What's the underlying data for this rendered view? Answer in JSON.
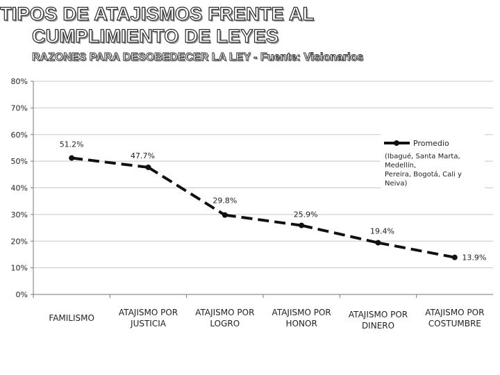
{
  "header": {
    "title_line1": "TIPOS DE ATAJISMOS FRENTE AL",
    "title_line2": "CUMPLIMIENTO DE LEYES",
    "subtitle": "RAZONES PARA DESOBEDECER LA LEY -  Fuente: Visionarios"
  },
  "chart_data": {
    "type": "line",
    "categories": [
      [
        "FAMILISMO"
      ],
      [
        "ATAJISMO POR",
        "JUSTICIA"
      ],
      [
        "ATAJISMO POR",
        "LOGRO"
      ],
      [
        "ATAJISMO POR",
        "HONOR"
      ],
      [
        "ATAJISMO POR",
        "DINERO"
      ],
      [
        "ATAJISMO POR",
        "COSTUMBRE"
      ]
    ],
    "series": [
      {
        "name": "Promedio",
        "values": [
          51.2,
          47.7,
          29.8,
          25.9,
          19.4,
          13.9
        ],
        "data_labels": [
          "51.2%",
          "47.7%",
          "29.8%",
          "25.9%",
          "19.4%",
          "13.9%"
        ]
      }
    ],
    "ylim": [
      0,
      80
    ],
    "yticks": [
      "0%",
      "10%",
      "20%",
      "30%",
      "40%",
      "50%",
      "60%",
      "70%",
      "80%"
    ],
    "grid": true,
    "legend": {
      "position": "top-right",
      "label": "Promedio",
      "note": [
        "(Ibagué, Santa Marta,",
        "Medellín,",
        "Pereira, Bogotá, Cali y",
        "Neiva)"
      ]
    },
    "line_color": "#111111"
  }
}
